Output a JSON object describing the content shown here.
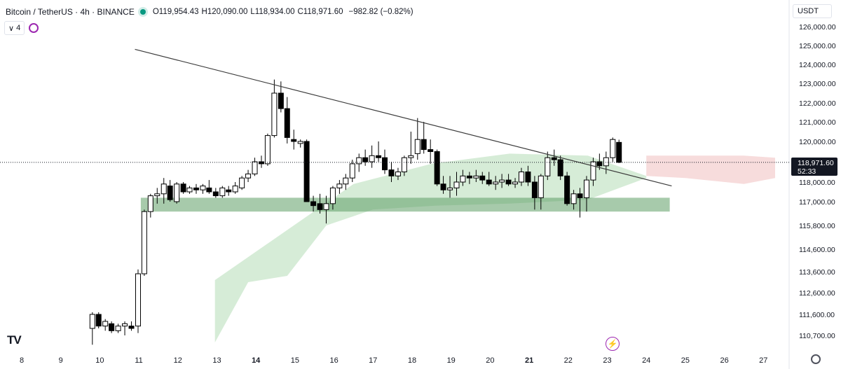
{
  "header": {
    "title": "Bitcoin / TetherUS · 4h · BINANCE",
    "open_label": "O",
    "open": "119,954.43",
    "high_label": "H",
    "high": "120,090.00",
    "low_label": "L",
    "low": "118,934.00",
    "close_label": "C",
    "close": "118,971.60",
    "change": "−982.82 (−0.82%)",
    "status_color": "#089981"
  },
  "toolbar": {
    "layers_label": "4",
    "layers_icon": "chevron-down-icon",
    "sync_icon": "sync-icon"
  },
  "unit_selector": {
    "label": "USDT"
  },
  "price_badge": {
    "price": "118,971.60",
    "countdown": "52:33"
  },
  "footer": {
    "logo": "TV",
    "settings_icon": "gear-icon",
    "flash_icon": "lightning-icon"
  },
  "colors": {
    "candle_up_fill": "#ffffff",
    "candle_down_fill": "#000000",
    "candle_stroke": "#000000",
    "support_zone": "#5e9f66",
    "cloud_green": "#cfe9d0",
    "cloud_red": "#f6d6d6",
    "trendline": "#3b3b3b",
    "price_badge": "#131722"
  },
  "chart_data": {
    "type": "candlestick",
    "xlabel": "",
    "ylabel": "",
    "x_ticks": [
      "8",
      "9",
      "10",
      "11",
      "12",
      "13",
      "14",
      "15",
      "16",
      "17",
      "18",
      "19",
      "20",
      "21",
      "22",
      "23",
      "24",
      "25",
      "26",
      "27"
    ],
    "y_ticks": [
      "126,000.00",
      "125,000.00",
      "124,000.00",
      "123,000.00",
      "122,000.00",
      "121,000.00",
      "120,000.00",
      "118,000.00",
      "117,000.00",
      "115,800.00",
      "114,600.00",
      "113,600.00",
      "112,600.00",
      "111,600.00",
      "110,700.00"
    ],
    "current_price": 118971.6,
    "support_zone": {
      "from_day": 11.05,
      "to_day": 24.6,
      "low": 116500,
      "high": 117200
    },
    "trendline": {
      "start": {
        "day": 10.9,
        "price": 124800
      },
      "end": {
        "day": 24.65,
        "price": 117800
      }
    },
    "candles": [
      [
        9.81,
        111000,
        111700,
        110300,
        111600
      ],
      [
        9.97,
        111600,
        111700,
        111000,
        111100
      ],
      [
        10.14,
        111100,
        111400,
        110900,
        111300
      ],
      [
        10.3,
        111200,
        111300,
        110800,
        110900
      ],
      [
        10.47,
        110900,
        111200,
        110800,
        111100
      ],
      [
        10.64,
        111100,
        111300,
        110700,
        111200
      ],
      [
        10.81,
        111100,
        111300,
        110900,
        111000
      ],
      [
        10.98,
        111100,
        113700,
        110800,
        113500
      ],
      [
        11.14,
        113500,
        116600,
        113400,
        116500
      ],
      [
        11.3,
        116500,
        117400,
        116200,
        117300
      ],
      [
        11.47,
        117300,
        117700,
        116900,
        117400
      ],
      [
        11.64,
        117400,
        118200,
        116900,
        117900
      ],
      [
        11.8,
        117800,
        118100,
        117000,
        117100
      ],
      [
        11.97,
        117000,
        118000,
        116900,
        117900
      ],
      [
        12.14,
        117900,
        118000,
        117400,
        117500
      ],
      [
        12.3,
        117500,
        117800,
        117400,
        117700
      ],
      [
        12.47,
        117700,
        117900,
        117400,
        117600
      ],
      [
        12.64,
        117600,
        117900,
        117400,
        117800
      ],
      [
        12.8,
        117700,
        118100,
        117400,
        117500
      ],
      [
        12.97,
        117500,
        117700,
        117200,
        117300
      ],
      [
        13.14,
        117300,
        117800,
        117200,
        117700
      ],
      [
        13.3,
        117600,
        117800,
        117300,
        117500
      ],
      [
        13.47,
        117500,
        118000,
        117400,
        117800
      ],
      [
        13.64,
        117700,
        118300,
        117600,
        118200
      ],
      [
        13.8,
        118200,
        118600,
        118000,
        118400
      ],
      [
        13.97,
        118400,
        119200,
        118300,
        119000
      ],
      [
        14.14,
        119000,
        119300,
        118700,
        118900
      ],
      [
        14.3,
        118900,
        120400,
        118800,
        120300
      ],
      [
        14.47,
        120300,
        123200,
        120200,
        122500
      ],
      [
        14.64,
        122500,
        123100,
        121500,
        121700
      ],
      [
        14.8,
        121700,
        122300,
        119900,
        120200
      ],
      [
        14.97,
        120100,
        120600,
        119600,
        120000
      ],
      [
        15.14,
        119900,
        120100,
        119700,
        120000
      ],
      [
        15.3,
        120000,
        120100,
        117100,
        117000
      ],
      [
        15.47,
        117000,
        117300,
        116500,
        116800
      ],
      [
        15.64,
        116900,
        117400,
        116400,
        116600
      ],
      [
        15.8,
        116600,
        117300,
        115900,
        116900
      ],
      [
        15.97,
        116900,
        117800,
        116600,
        117700
      ],
      [
        16.14,
        117700,
        118100,
        117400,
        117900
      ],
      [
        16.3,
        117900,
        118400,
        117600,
        118200
      ],
      [
        16.47,
        118200,
        119100,
        118000,
        118900
      ],
      [
        16.64,
        118900,
        119400,
        118500,
        119200
      ],
      [
        16.8,
        119200,
        119600,
        118800,
        119000
      ],
      [
        16.97,
        119000,
        119800,
        118700,
        119300
      ],
      [
        17.14,
        119300,
        120000,
        119000,
        119200
      ],
      [
        17.3,
        119200,
        119600,
        118400,
        118600
      ],
      [
        17.47,
        118600,
        119000,
        118000,
        118300
      ],
      [
        17.64,
        118300,
        118700,
        118100,
        118500
      ],
      [
        17.8,
        118500,
        119300,
        118300,
        119200
      ],
      [
        17.97,
        119200,
        120500,
        118900,
        119300
      ],
      [
        18.14,
        119400,
        121200,
        119100,
        120100
      ],
      [
        18.3,
        120100,
        121000,
        119400,
        119600
      ],
      [
        18.47,
        119600,
        120100,
        118900,
        119500
      ],
      [
        18.64,
        119500,
        119600,
        117800,
        117900
      ],
      [
        18.8,
        117900,
        118300,
        117400,
        117600
      ],
      [
        18.97,
        117600,
        118300,
        117200,
        117700
      ],
      [
        19.14,
        117700,
        118500,
        117300,
        118000
      ],
      [
        19.3,
        118000,
        118600,
        117800,
        118300
      ],
      [
        19.47,
        118300,
        118500,
        117900,
        118200
      ],
      [
        19.64,
        118200,
        118600,
        118000,
        118300
      ],
      [
        19.8,
        118300,
        118500,
        117900,
        118100
      ],
      [
        19.97,
        118100,
        118500,
        117800,
        117900
      ],
      [
        20.14,
        117900,
        118300,
        117600,
        118000
      ],
      [
        20.3,
        118000,
        118400,
        117700,
        118100
      ],
      [
        20.47,
        118100,
        118400,
        117800,
        117900
      ],
      [
        20.64,
        117900,
        118200,
        117700,
        118000
      ],
      [
        20.8,
        118000,
        118700,
        117800,
        118500
      ],
      [
        20.97,
        118500,
        118800,
        117800,
        118000
      ],
      [
        21.14,
        118000,
        118300,
        116600,
        117200
      ],
      [
        21.3,
        117200,
        118400,
        116600,
        118300
      ],
      [
        21.47,
        118300,
        119500,
        118100,
        119200
      ],
      [
        21.64,
        119200,
        119600,
        118800,
        119100
      ],
      [
        21.8,
        119100,
        119300,
        118100,
        118300
      ],
      [
        21.97,
        118300,
        118500,
        116800,
        116900
      ],
      [
        22.14,
        116900,
        117600,
        116600,
        117400
      ],
      [
        22.3,
        117400,
        117700,
        116200,
        117200
      ],
      [
        22.47,
        117200,
        118300,
        116500,
        118100
      ],
      [
        22.64,
        118100,
        119200,
        117800,
        119000
      ],
      [
        22.8,
        119000,
        119400,
        118600,
        118800
      ],
      [
        22.97,
        118800,
        119500,
        118400,
        119200
      ],
      [
        23.14,
        119200,
        120200,
        119000,
        120100
      ],
      [
        23.3,
        119954.43,
        120090.0,
        118934.0,
        118971.6
      ]
    ],
    "cloud_green_upper": [
      [
        12.95,
        113200
      ],
      [
        16.5,
        117900
      ],
      [
        18.5,
        118900
      ],
      [
        20.5,
        119400
      ],
      [
        22.5,
        119300
      ],
      [
        24.0,
        118300
      ]
    ],
    "cloud_green_lower": [
      [
        12.95,
        110400
      ],
      [
        13.8,
        113100
      ],
      [
        14.8,
        113400
      ],
      [
        15.8,
        115800
      ],
      [
        17.0,
        116600
      ],
      [
        18.6,
        116800
      ],
      [
        20.5,
        116900
      ],
      [
        22.5,
        117100
      ],
      [
        24.0,
        118200
      ]
    ],
    "cloud_red_upper": [
      [
        24.0,
        119300
      ],
      [
        26.5,
        119300
      ],
      [
        27.3,
        119200
      ]
    ],
    "cloud_red_lower": [
      [
        24.0,
        118300
      ],
      [
        25.0,
        118200
      ],
      [
        26.5,
        117900
      ],
      [
        27.3,
        118200
      ]
    ]
  }
}
